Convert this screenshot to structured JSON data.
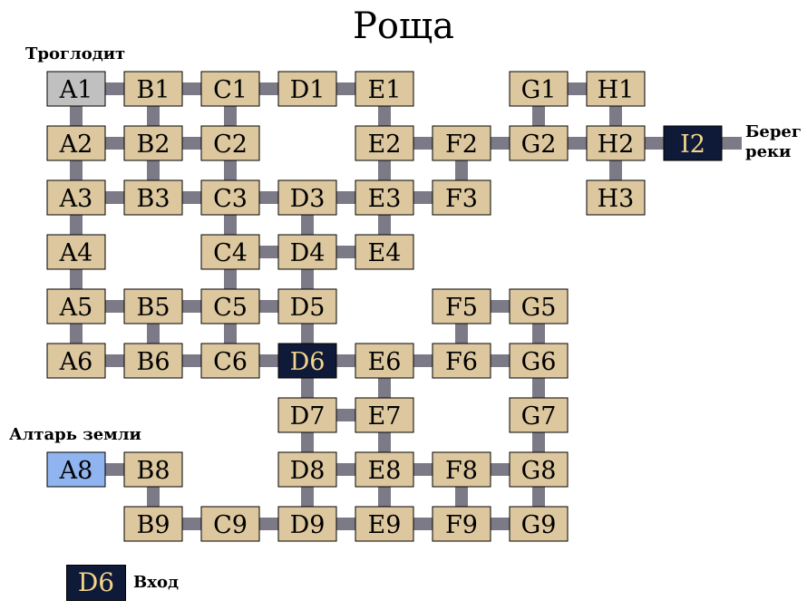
{
  "title": "Роща",
  "labels": {
    "troglodyte": "Троглодит",
    "earth_altar": "Алтарь земли",
    "riverbank_line1": "Берег",
    "riverbank_line2": "реки"
  },
  "legend": {
    "room": "D6",
    "text": "Вход"
  },
  "colors": {
    "room": "#dcc79e",
    "room_text": "#000000",
    "start": "#c0c0c0",
    "altar": "#8fb4f0",
    "exit_fill": "#0f1a38",
    "exit_text": "#f3d68a",
    "connector": "#7c7a87"
  },
  "columns": [
    "A",
    "B",
    "C",
    "D",
    "E",
    "F",
    "G",
    "H",
    "I"
  ],
  "rooms": [
    {
      "id": "A1",
      "kind": "start"
    },
    {
      "id": "B1"
    },
    {
      "id": "C1"
    },
    {
      "id": "D1"
    },
    {
      "id": "E1"
    },
    {
      "id": "G1"
    },
    {
      "id": "H1"
    },
    {
      "id": "A2"
    },
    {
      "id": "B2"
    },
    {
      "id": "C2"
    },
    {
      "id": "E2"
    },
    {
      "id": "F2"
    },
    {
      "id": "G2"
    },
    {
      "id": "H2"
    },
    {
      "id": "I2",
      "kind": "exit"
    },
    {
      "id": "A3"
    },
    {
      "id": "B3"
    },
    {
      "id": "C3"
    },
    {
      "id": "D3"
    },
    {
      "id": "E3"
    },
    {
      "id": "F3"
    },
    {
      "id": "H3"
    },
    {
      "id": "A4"
    },
    {
      "id": "C4"
    },
    {
      "id": "D4"
    },
    {
      "id": "E4"
    },
    {
      "id": "A5"
    },
    {
      "id": "B5"
    },
    {
      "id": "C5"
    },
    {
      "id": "D5"
    },
    {
      "id": "F5"
    },
    {
      "id": "G5"
    },
    {
      "id": "A6"
    },
    {
      "id": "B6"
    },
    {
      "id": "C6"
    },
    {
      "id": "D6",
      "kind": "entrance"
    },
    {
      "id": "E6"
    },
    {
      "id": "F6"
    },
    {
      "id": "G6"
    },
    {
      "id": "D7"
    },
    {
      "id": "E7"
    },
    {
      "id": "G7"
    },
    {
      "id": "A8",
      "kind": "altar"
    },
    {
      "id": "B8"
    },
    {
      "id": "D8"
    },
    {
      "id": "E8"
    },
    {
      "id": "F8"
    },
    {
      "id": "G8"
    },
    {
      "id": "B9"
    },
    {
      "id": "C9"
    },
    {
      "id": "D9"
    },
    {
      "id": "E9"
    },
    {
      "id": "F9"
    },
    {
      "id": "G9"
    }
  ],
  "connections": [
    [
      "A1",
      "B1"
    ],
    [
      "B1",
      "C1"
    ],
    [
      "C1",
      "D1"
    ],
    [
      "D1",
      "E1"
    ],
    [
      "G1",
      "H1"
    ],
    [
      "A1",
      "A2"
    ],
    [
      "B1",
      "B2"
    ],
    [
      "C1",
      "C2"
    ],
    [
      "E1",
      "E2"
    ],
    [
      "G1",
      "G2"
    ],
    [
      "H1",
      "H2"
    ],
    [
      "A2",
      "B2"
    ],
    [
      "B2",
      "C2"
    ],
    [
      "E2",
      "F2"
    ],
    [
      "F2",
      "G2"
    ],
    [
      "G2",
      "H2"
    ],
    [
      "H2",
      "I2"
    ],
    [
      "A2",
      "A3"
    ],
    [
      "B2",
      "B3"
    ],
    [
      "C2",
      "C3"
    ],
    [
      "E2",
      "E3"
    ],
    [
      "F2",
      "F3"
    ],
    [
      "H2",
      "H3"
    ],
    [
      "A3",
      "B3"
    ],
    [
      "B3",
      "C3"
    ],
    [
      "C3",
      "D3"
    ],
    [
      "D3",
      "E3"
    ],
    [
      "E3",
      "F3"
    ],
    [
      "A3",
      "A4"
    ],
    [
      "C3",
      "C4"
    ],
    [
      "D3",
      "D4"
    ],
    [
      "E3",
      "E4"
    ],
    [
      "C4",
      "D4"
    ],
    [
      "D4",
      "E4"
    ],
    [
      "A4",
      "A5"
    ],
    [
      "C4",
      "C5"
    ],
    [
      "D4",
      "D5"
    ],
    [
      "A5",
      "B5"
    ],
    [
      "B5",
      "C5"
    ],
    [
      "C5",
      "D5"
    ],
    [
      "F5",
      "G5"
    ],
    [
      "A5",
      "A6"
    ],
    [
      "B5",
      "B6"
    ],
    [
      "C5",
      "C6"
    ],
    [
      "D5",
      "D6"
    ],
    [
      "F5",
      "F6"
    ],
    [
      "G5",
      "G6"
    ],
    [
      "A6",
      "B6"
    ],
    [
      "B6",
      "C6"
    ],
    [
      "C6",
      "D6"
    ],
    [
      "D6",
      "E6"
    ],
    [
      "E6",
      "F6"
    ],
    [
      "F6",
      "G6"
    ],
    [
      "D6",
      "D7"
    ],
    [
      "E6",
      "E7"
    ],
    [
      "G6",
      "G7"
    ],
    [
      "D7",
      "E7"
    ],
    [
      "D7",
      "D8"
    ],
    [
      "E7",
      "E8"
    ],
    [
      "G7",
      "G8"
    ],
    [
      "A8",
      "B8"
    ],
    [
      "D8",
      "E8"
    ],
    [
      "E8",
      "F8"
    ],
    [
      "F8",
      "G8"
    ],
    [
      "B8",
      "B9"
    ],
    [
      "D8",
      "D9"
    ],
    [
      "E8",
      "E9"
    ],
    [
      "F8",
      "F9"
    ],
    [
      "G8",
      "G9"
    ],
    [
      "B9",
      "C9"
    ],
    [
      "C9",
      "D9"
    ],
    [
      "D9",
      "E9"
    ],
    [
      "E9",
      "F9"
    ],
    [
      "F9",
      "G9"
    ]
  ]
}
